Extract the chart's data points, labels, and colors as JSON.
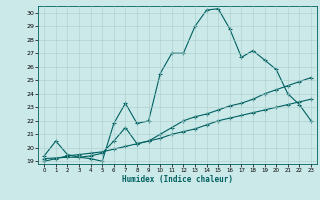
{
  "xlabel": "Humidex (Indice chaleur)",
  "bg_color": "#cce9e9",
  "grid_color": "#aacccc",
  "line_color": "#006060",
  "xlim": [
    0,
    23
  ],
  "ylim": [
    19,
    30
  ],
  "xticks": [
    0,
    1,
    2,
    3,
    4,
    5,
    6,
    7,
    8,
    9,
    10,
    11,
    12,
    13,
    14,
    15,
    16,
    17,
    18,
    19,
    20,
    21,
    22,
    23
  ],
  "yticks": [
    19,
    20,
    21,
    22,
    23,
    24,
    25,
    26,
    27,
    28,
    29,
    30
  ],
  "line1_x": [
    0,
    1,
    2,
    3,
    4,
    5,
    6,
    7,
    8,
    9,
    10,
    11,
    12,
    13,
    14,
    15,
    16,
    17,
    18,
    19,
    20,
    21,
    22,
    23
  ],
  "line1_y": [
    19.4,
    20.5,
    19.5,
    19.3,
    19.2,
    19.0,
    21.8,
    23.3,
    21.8,
    22.0,
    25.5,
    27.0,
    27.0,
    29.0,
    30.2,
    30.3,
    28.8,
    26.7,
    27.2,
    26.5,
    25.8,
    24.0,
    23.2,
    22.0
  ],
  "line2_x": [
    0,
    2,
    3,
    4,
    5,
    6,
    7,
    8,
    9,
    10,
    11,
    12,
    13,
    14,
    15,
    16,
    17,
    18,
    19,
    20,
    21,
    22,
    23
  ],
  "line2_y": [
    19.2,
    19.3,
    19.3,
    19.4,
    19.6,
    20.5,
    21.5,
    20.3,
    20.5,
    21.0,
    21.5,
    22.0,
    22.3,
    22.5,
    22.8,
    23.1,
    23.3,
    23.6,
    24.0,
    24.3,
    24.6,
    24.9,
    25.2
  ],
  "line3_x": [
    0,
    1,
    2,
    3,
    4,
    5,
    6,
    7,
    8,
    9,
    10,
    11,
    12,
    13,
    14,
    15,
    16,
    17,
    18,
    19,
    20,
    21,
    22,
    23
  ],
  "line3_y": [
    19.0,
    19.2,
    19.4,
    19.5,
    19.6,
    19.7,
    19.9,
    20.1,
    20.3,
    20.5,
    20.7,
    21.0,
    21.2,
    21.4,
    21.7,
    22.0,
    22.2,
    22.4,
    22.6,
    22.8,
    23.0,
    23.2,
    23.4,
    23.6
  ],
  "marker": "+",
  "markersize": 3,
  "linewidth": 0.8
}
